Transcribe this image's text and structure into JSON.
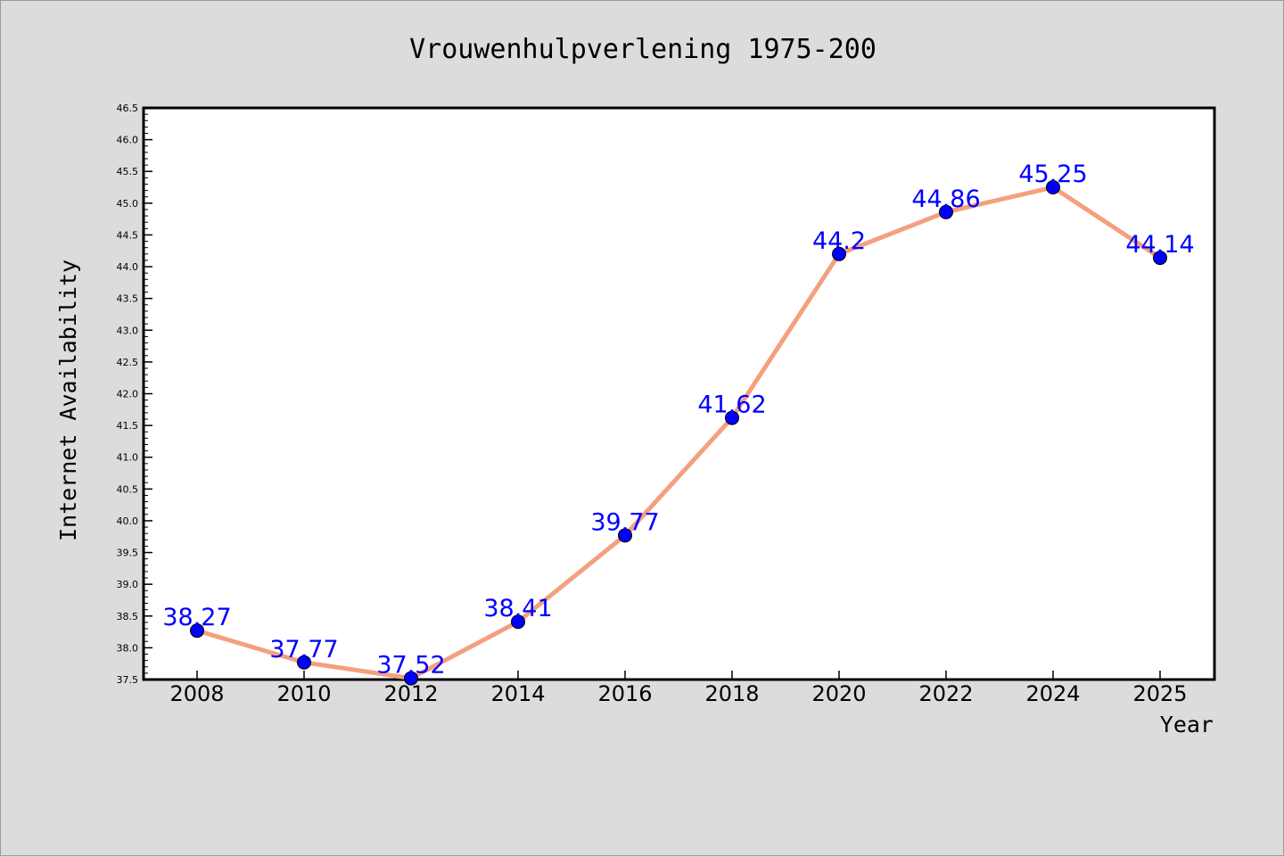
{
  "chart_data": {
    "type": "line",
    "title": "Vrouwenhulpverlening 1975-200",
    "xlabel": "Year",
    "ylabel": "Internet Availability",
    "categories": [
      "2008",
      "2010",
      "2012",
      "2014",
      "2016",
      "2018",
      "2020",
      "2022",
      "2024",
      "2025"
    ],
    "values": [
      38.27,
      37.77,
      37.52,
      38.41,
      39.77,
      41.62,
      44.2,
      44.86,
      45.25,
      44.14
    ],
    "data_labels": [
      "38.27",
      "37.77",
      "37.52",
      "38.41",
      "39.77",
      "41.62",
      "44.2",
      "44.86",
      "45.25",
      "44.14"
    ],
    "ylim": [
      37.5,
      46.5
    ],
    "yticks": [
      "37.5",
      "38.0",
      "38.5",
      "39.0",
      "39.5",
      "40.0",
      "40.5",
      "41.0",
      "41.5",
      "42.0",
      "42.5",
      "43.0",
      "43.5",
      "44.0",
      "44.5",
      "45.0",
      "45.5",
      "46.0",
      "46.5"
    ],
    "grid": false,
    "line_color": "#f4a07f",
    "marker_color": "#0000ff",
    "label_color": "#0000ff",
    "background": "#dcdcdc",
    "plot_background": "#ffffff"
  }
}
